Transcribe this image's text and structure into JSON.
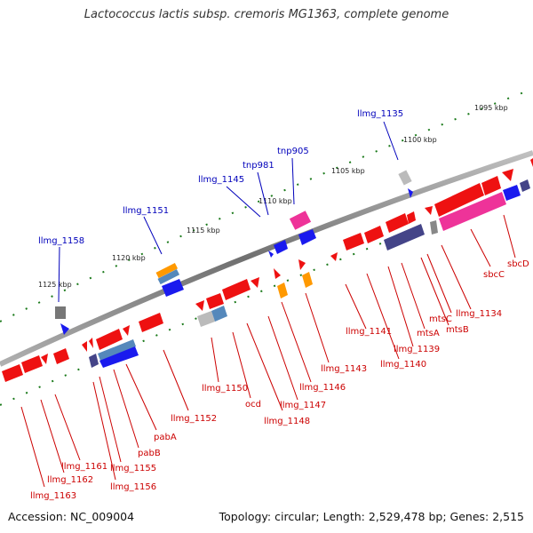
{
  "title": "Lactococcus lactis subsp. cremoris MG1363, complete genome",
  "accession": "Accession: NC_009004",
  "topology": "Topology: circular; Length: 2,529,478 bp; Genes: 2,515",
  "colors": {
    "backbone": "#808080",
    "cds": "#ee1111",
    "rna_or_special": "#1a1aee",
    "magenta": "#ee3399",
    "navy": "#444488",
    "orange": "#ff9900",
    "gray": "#999999",
    "steel": "#5588bb",
    "tick_green": "#1b7a1b",
    "label_red": "#cc0000",
    "label_blue": "#0000bb"
  },
  "kbp_markers": [
    "1095 kbp",
    "1100 kbp",
    "1105 kbp",
    "1110 kbp",
    "1115 kbp",
    "1120 kbp",
    "1125 kbp"
  ],
  "top_labels": [
    "llmg_1135",
    "tnp905",
    "tnp981",
    "llmg_1145",
    "llmg_1151",
    "llmg_1158"
  ],
  "bottom_labels": [
    "sbcD",
    "sbcC",
    "llmg_1134",
    "mtsC",
    "mtsB",
    "mtsA",
    "llmg_1139",
    "llmg_1140",
    "llmg_1141",
    "llmg_1143",
    "llmg_1146",
    "llmg_1147",
    "llmg_1148",
    "ocd",
    "llmg_1150",
    "llmg_1152",
    "pabA",
    "pabB",
    "llmg_1155",
    "llmg_1156",
    "llmg_1161",
    "llmg_1162",
    "llmg_1163"
  ]
}
